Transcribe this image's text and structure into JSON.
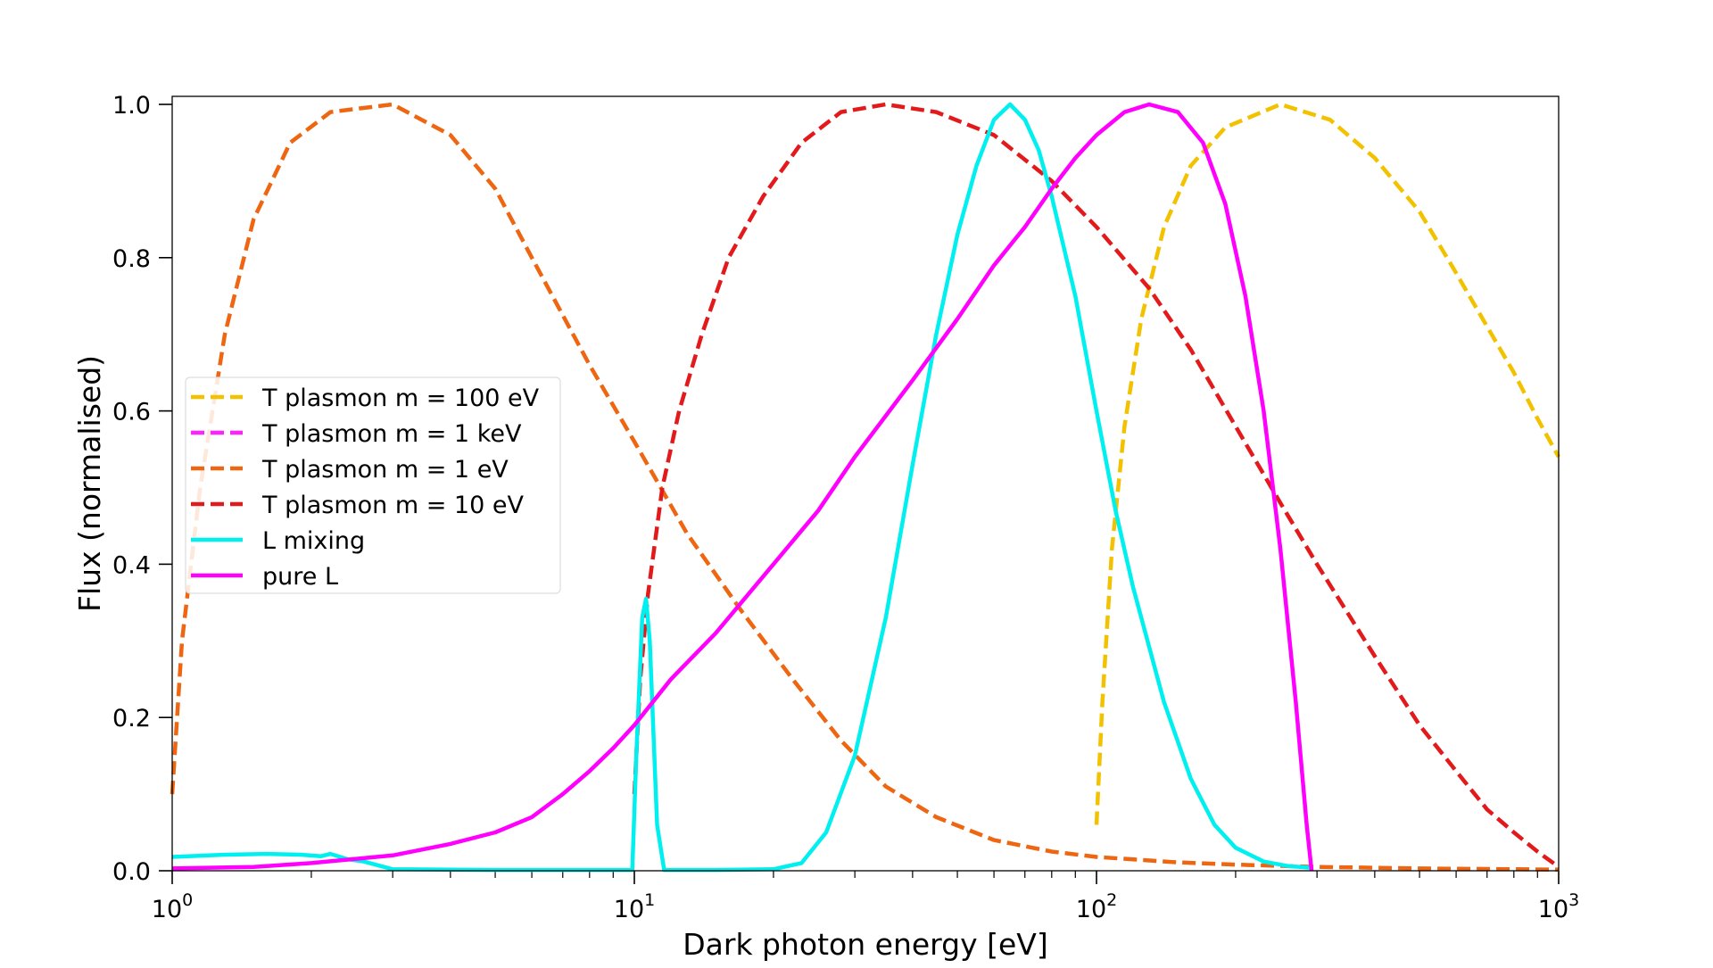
{
  "chart_data": {
    "type": "line",
    "xlabel": "Dark photon energy [eV]",
    "ylabel": "Flux (normalised)",
    "xscale": "log",
    "xlim": [
      1,
      1000
    ],
    "ylim": [
      0.0,
      1.01
    ],
    "x_ticks": [
      {
        "base": "10",
        "exp": "0",
        "value": 1
      },
      {
        "base": "10",
        "exp": "1",
        "value": 10
      },
      {
        "base": "10",
        "exp": "2",
        "value": 100
      },
      {
        "base": "10",
        "exp": "3",
        "value": 1000
      }
    ],
    "y_ticks": [
      "0.0",
      "0.2",
      "0.4",
      "0.6",
      "0.8",
      "1.0"
    ],
    "grid": false,
    "legend_position": "center-left",
    "series": [
      {
        "name": "T plasmon m = 100 eV",
        "color": "#f2c200",
        "style": "dashed",
        "points": [
          [
            100,
            0.06
          ],
          [
            103,
            0.22
          ],
          [
            108,
            0.42
          ],
          [
            115,
            0.58
          ],
          [
            125,
            0.72
          ],
          [
            140,
            0.84
          ],
          [
            160,
            0.92
          ],
          [
            190,
            0.97
          ],
          [
            250,
            1.0
          ],
          [
            320,
            0.98
          ],
          [
            400,
            0.93
          ],
          [
            500,
            0.86
          ],
          [
            600,
            0.78
          ],
          [
            700,
            0.71
          ],
          [
            800,
            0.65
          ],
          [
            900,
            0.59
          ],
          [
            1000,
            0.54
          ]
        ]
      },
      {
        "name": "T plasmon m = 1 keV",
        "color": "#ff22ff",
        "style": "dashed",
        "points": []
      },
      {
        "name": "T plasmon m = 1 eV",
        "color": "#ee6611",
        "style": "dashed",
        "points": [
          [
            1.0,
            0.1
          ],
          [
            1.05,
            0.3
          ],
          [
            1.15,
            0.5
          ],
          [
            1.3,
            0.7
          ],
          [
            1.5,
            0.85
          ],
          [
            1.8,
            0.95
          ],
          [
            2.2,
            0.99
          ],
          [
            3.0,
            1.0
          ],
          [
            4.0,
            0.96
          ],
          [
            5.0,
            0.89
          ],
          [
            6.0,
            0.8
          ],
          [
            8.0,
            0.66
          ],
          [
            10.0,
            0.56
          ],
          [
            13.0,
            0.44
          ],
          [
            17.0,
            0.34
          ],
          [
            22.0,
            0.25
          ],
          [
            28.0,
            0.17
          ],
          [
            35.0,
            0.11
          ],
          [
            45.0,
            0.07
          ],
          [
            60.0,
            0.04
          ],
          [
            80.0,
            0.025
          ],
          [
            100.0,
            0.018
          ],
          [
            150.0,
            0.011
          ],
          [
            200.0,
            0.008
          ],
          [
            300.0,
            0.005
          ],
          [
            500.0,
            0.003
          ],
          [
            1000.0,
            0.0015
          ]
        ]
      },
      {
        "name": "T plasmon m = 10 eV",
        "color": "#e31a1c",
        "style": "dashed",
        "points": [
          [
            10.0,
            0.1
          ],
          [
            10.3,
            0.25
          ],
          [
            10.7,
            0.36
          ],
          [
            11.5,
            0.5
          ],
          [
            12.5,
            0.6
          ],
          [
            14.0,
            0.7
          ],
          [
            16.0,
            0.8
          ],
          [
            19.0,
            0.88
          ],
          [
            23.0,
            0.95
          ],
          [
            28.0,
            0.99
          ],
          [
            35.0,
            1.0
          ],
          [
            45.0,
            0.99
          ],
          [
            60.0,
            0.96
          ],
          [
            80.0,
            0.9
          ],
          [
            100.0,
            0.84
          ],
          [
            130.0,
            0.76
          ],
          [
            160.0,
            0.68
          ],
          [
            200.0,
            0.58
          ],
          [
            250.0,
            0.48
          ],
          [
            300.0,
            0.4
          ],
          [
            400.0,
            0.28
          ],
          [
            500.0,
            0.19
          ],
          [
            600.0,
            0.13
          ],
          [
            700.0,
            0.08
          ],
          [
            800.0,
            0.05
          ],
          [
            900.0,
            0.025
          ],
          [
            1000.0,
            0.005
          ]
        ]
      },
      {
        "name": "L mixing",
        "color": "#00f0f0",
        "style": "solid",
        "points": [
          [
            1.0,
            0.018
          ],
          [
            1.3,
            0.021
          ],
          [
            1.6,
            0.022
          ],
          [
            1.9,
            0.021
          ],
          [
            2.1,
            0.019
          ],
          [
            2.2,
            0.022
          ],
          [
            2.4,
            0.015
          ],
          [
            2.6,
            0.012
          ],
          [
            3.0,
            0.002
          ],
          [
            5.0,
            0.001
          ],
          [
            9.5,
            0.001
          ],
          [
            9.9,
            0.001
          ],
          [
            10.1,
            0.15
          ],
          [
            10.4,
            0.33
          ],
          [
            10.6,
            0.355
          ],
          [
            10.8,
            0.3
          ],
          [
            11.2,
            0.06
          ],
          [
            11.6,
            0.001
          ],
          [
            15.0,
            0.001
          ],
          [
            20.0,
            0.002
          ],
          [
            23.0,
            0.01
          ],
          [
            26.0,
            0.05
          ],
          [
            30.0,
            0.15
          ],
          [
            35.0,
            0.33
          ],
          [
            40.0,
            0.53
          ],
          [
            45.0,
            0.7
          ],
          [
            50.0,
            0.83
          ],
          [
            55.0,
            0.92
          ],
          [
            60.0,
            0.98
          ],
          [
            65.0,
            1.0
          ],
          [
            70.0,
            0.98
          ],
          [
            75.0,
            0.94
          ],
          [
            80.0,
            0.88
          ],
          [
            90.0,
            0.75
          ],
          [
            100.0,
            0.6
          ],
          [
            110.0,
            0.47
          ],
          [
            120.0,
            0.37
          ],
          [
            140.0,
            0.22
          ],
          [
            160.0,
            0.12
          ],
          [
            180.0,
            0.06
          ],
          [
            200.0,
            0.03
          ],
          [
            230.0,
            0.012
          ],
          [
            260.0,
            0.006
          ],
          [
            290.0,
            0.004
          ]
        ]
      },
      {
        "name": "pure L",
        "color": "#ff00ff",
        "style": "solid",
        "points": [
          [
            1.0,
            0.003
          ],
          [
            1.5,
            0.005
          ],
          [
            2.0,
            0.01
          ],
          [
            3.0,
            0.02
          ],
          [
            4.0,
            0.035
          ],
          [
            5.0,
            0.05
          ],
          [
            6.0,
            0.07
          ],
          [
            7.0,
            0.1
          ],
          [
            8.0,
            0.13
          ],
          [
            9.0,
            0.16
          ],
          [
            10.0,
            0.19
          ],
          [
            12.0,
            0.25
          ],
          [
            15.0,
            0.31
          ],
          [
            20.0,
            0.4
          ],
          [
            25.0,
            0.47
          ],
          [
            30.0,
            0.54
          ],
          [
            40.0,
            0.64
          ],
          [
            50.0,
            0.72
          ],
          [
            60.0,
            0.79
          ],
          [
            70.0,
            0.84
          ],
          [
            80.0,
            0.89
          ],
          [
            90.0,
            0.93
          ],
          [
            100.0,
            0.96
          ],
          [
            115.0,
            0.99
          ],
          [
            130.0,
            1.0
          ],
          [
            150.0,
            0.99
          ],
          [
            170.0,
            0.95
          ],
          [
            190.0,
            0.87
          ],
          [
            210.0,
            0.75
          ],
          [
            230.0,
            0.6
          ],
          [
            250.0,
            0.42
          ],
          [
            270.0,
            0.22
          ],
          [
            285.0,
            0.06
          ],
          [
            292.0,
            0.0
          ]
        ]
      }
    ]
  }
}
